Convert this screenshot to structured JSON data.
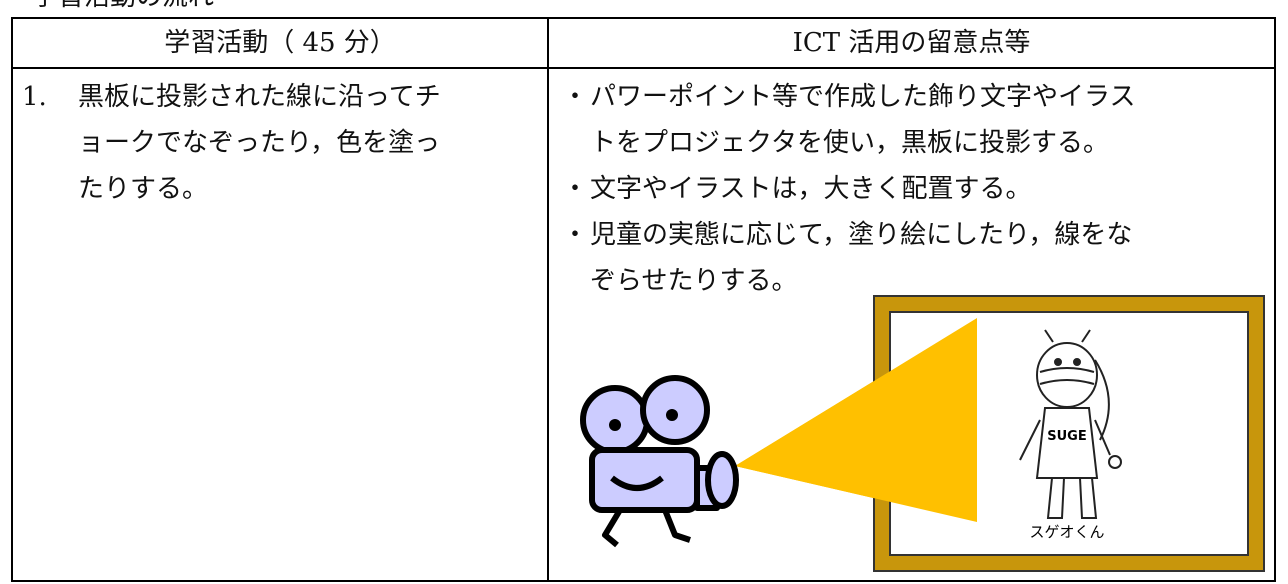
{
  "header": {
    "title": "学習活動の流れ"
  },
  "table": {
    "columns": [
      "学習活動（ 45 分）",
      "ICT 活用の留意点等"
    ],
    "rows": [
      [
        {
          "number": "1.",
          "lines": [
            "黒板に投影された線に沿ってチ",
            "ョークでなぞったり，色を塗っ",
            "たりする。"
          ]
        },
        {
          "items": [
            {
              "bullet": "・",
              "lines": [
                "パワーポイント等で作成した飾り文字やイラス",
                "トをプロジェクタを使い，黒板に投影する。"
              ]
            },
            {
              "bullet": "・",
              "lines": [
                "文字やイラストは，大きく配置する。"
              ]
            },
            {
              "bullet": "・",
              "lines": [
                "児童の実態に応じて，塗り絵にしたり，線をな",
                "ぞらせたりする。"
              ]
            }
          ]
        }
      ]
    ]
  },
  "illustration": {
    "shirt_text": "SUGE",
    "caption": "スゲオくん"
  }
}
